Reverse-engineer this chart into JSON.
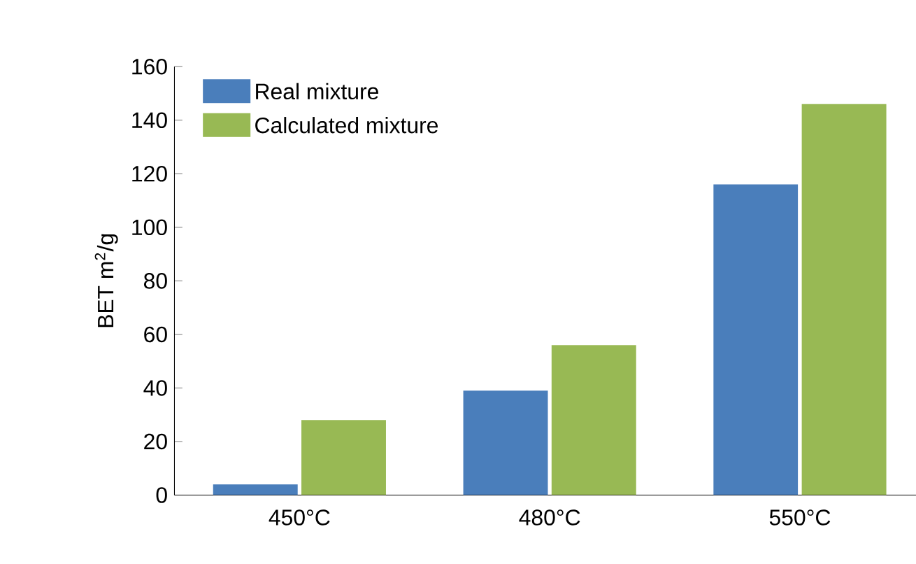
{
  "chart_data": {
    "type": "bar",
    "ylabel": "BET m$^{2}$/g",
    "categories": [
      "450°C",
      "480°C",
      "550°C"
    ],
    "series": [
      {
        "name": "Real mixture",
        "color": "#4a7ebb",
        "values": [
          4,
          39,
          116
        ]
      },
      {
        "name": "Calculated mixture",
        "color": "#98b954",
        "values": [
          28,
          56,
          146
        ]
      }
    ],
    "ylim": [
      0,
      160
    ],
    "yticks": [
      0,
      20,
      40,
      60,
      80,
      100,
      120,
      140,
      160
    ],
    "grid": false,
    "legend": "top left"
  }
}
